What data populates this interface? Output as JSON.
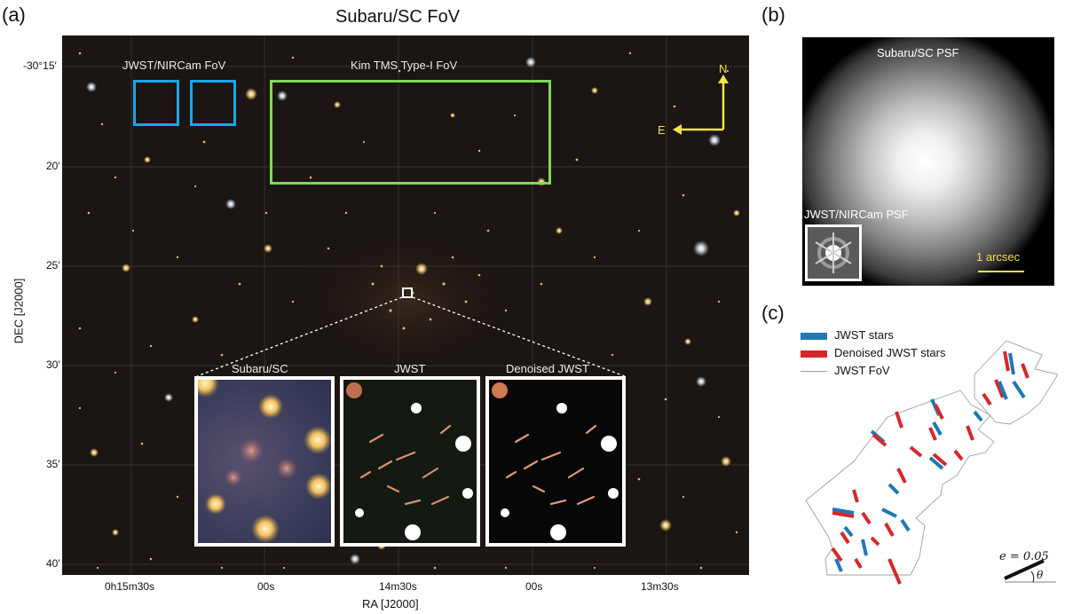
{
  "panel_a": {
    "label": "(a)",
    "title": "Subaru/SC FoV",
    "xlabel": "RA [J2000]",
    "ylabel": "DEC [J2000]",
    "dec_ticks": [
      "-30°15′",
      "20′",
      "25′",
      "30′",
      "35′",
      "40′"
    ],
    "ra_ticks": [
      "0h15m30s",
      "00s",
      "14m30s",
      "00s",
      "13m30s"
    ],
    "fov_labels": {
      "jwst": "JWST/NIRCam FoV",
      "kim": "Kim TMS Type-I FoV"
    },
    "compass": {
      "north": "N",
      "east": "E"
    },
    "insets": [
      "Subaru/SC",
      "JWST",
      "Denoised JWST"
    ],
    "colors": {
      "jwst_box": "#1aa6e8",
      "kim_box": "#7ed957",
      "compass": "#f2e24a"
    }
  },
  "panel_b": {
    "label": "(b)",
    "subaru_psf": "Subaru/SC PSF",
    "jwst_psf": "JWST/NIRCam PSF",
    "scale": "1 arcsec"
  },
  "panel_c": {
    "label": "(c)",
    "legend": [
      {
        "text": "JWST stars",
        "color": "#1f77b4"
      },
      {
        "text": "Denoised JWST stars",
        "color": "#d62728"
      },
      {
        "text": "JWST FoV",
        "color": "#999999"
      }
    ],
    "scale_label": "e = 0.05",
    "angle_label": "θ"
  }
}
